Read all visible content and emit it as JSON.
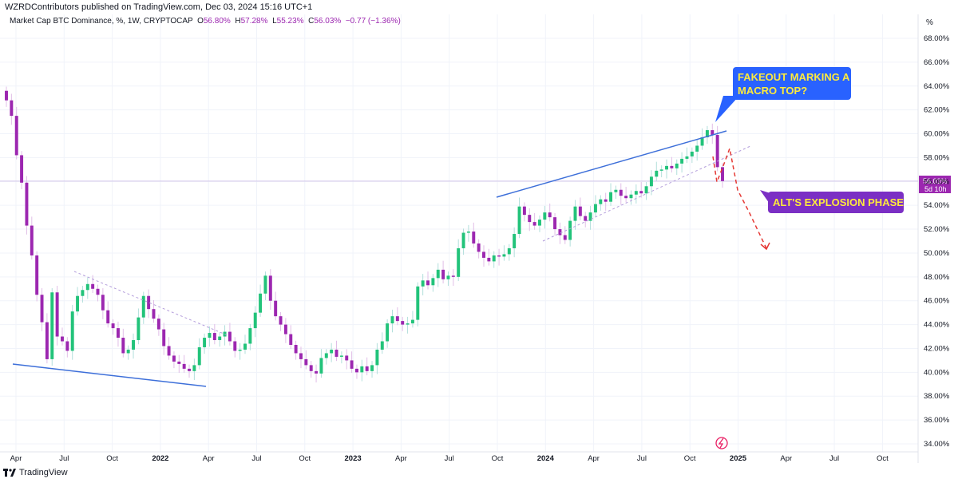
{
  "header": {
    "published": "WZRDContributors published on TradingView.com, Dec 03, 2024 15:16 UTC+1"
  },
  "legend": {
    "symbol": "Market Cap BTC Dominance, %, 1W, CRYPTOCAP",
    "o_label": "O",
    "o_value": "56.80%",
    "h_label": "H",
    "h_value": "57.28%",
    "l_label": "L",
    "l_value": "55.23%",
    "c_label": "C",
    "c_value": "56.03%",
    "change": "−0.77 (−1.36%)"
  },
  "footer": {
    "brand": "TradingView"
  },
  "colors": {
    "up": "#26a69a",
    "up_candle": "#22c37a",
    "down": "#9c27b0",
    "trendline": "#3d6fd9",
    "dotted": "#b39ddb",
    "projection": "#e53935",
    "callout_blue": "#2962ff",
    "callout_purple": "#7b2fc4",
    "callout_text": "#ffeb3b",
    "price_tag": "#9c27b0"
  },
  "chart_data": {
    "type": "candlestick",
    "title": "",
    "ylabel": "%",
    "ylim": [
      33.3,
      69.2
    ],
    "y_ticks": [
      "68.00%",
      "66.00%",
      "64.00%",
      "62.00%",
      "60.00%",
      "58.00%",
      "56.00%",
      "54.00%",
      "52.00%",
      "50.00%",
      "48.00%",
      "46.00%",
      "44.00%",
      "42.00%",
      "40.00%",
      "38.00%",
      "36.00%",
      "34.00%"
    ],
    "x_ticks": [
      "Apr",
      "Jul",
      "Oct",
      "2022",
      "Apr",
      "Jul",
      "Oct",
      "2023",
      "Apr",
      "Jul",
      "Oct",
      "2024",
      "Apr",
      "Jul",
      "Oct",
      "2025",
      "Apr",
      "Jul",
      "Oct"
    ],
    "x_ticks_bold": [
      "2022",
      "2023",
      "2024",
      "2025"
    ],
    "current_price": "56.03%",
    "countdown": "5d 10h",
    "series_close": [
      62.8,
      61.5,
      58.2,
      55.9,
      52.3,
      49.8,
      46.5,
      44.2,
      41.1,
      46.7,
      43.0,
      42.6,
      41.8,
      45.1,
      46.4,
      46.9,
      47.4,
      47.0,
      46.5,
      45.2,
      44.1,
      43.7,
      42.9,
      41.6,
      41.9,
      42.7,
      44.6,
      46.4,
      45.3,
      44.5,
      43.6,
      42.2,
      41.4,
      40.9,
      40.7,
      40.3,
      40.1,
      40.6,
      42.1,
      42.9,
      43.3,
      42.7,
      43.0,
      43.4,
      42.6,
      41.8,
      41.9,
      42.4,
      43.7,
      45.0,
      46.6,
      48.1,
      46.0,
      44.7,
      44.0,
      43.2,
      42.3,
      41.6,
      41.1,
      40.6,
      40.1,
      39.9,
      41.2,
      41.6,
      41.9,
      41.3,
      41.4,
      41.0,
      40.3,
      40.0,
      40.5,
      40.1,
      40.6,
      41.9,
      42.6,
      44.1,
      44.7,
      44.3,
      44.0,
      44.1,
      44.4,
      47.2,
      47.7,
      47.3,
      47.9,
      48.6,
      47.8,
      48.1,
      48.0,
      50.4,
      51.7,
      51.8,
      50.8,
      50.1,
      49.6,
      49.3,
      49.8,
      49.7,
      49.9,
      50.4,
      51.6,
      53.9,
      53.2,
      52.6,
      52.3,
      52.8,
      53.4,
      53.0,
      52.0,
      51.5,
      51.1,
      52.7,
      53.9,
      53.1,
      52.7,
      53.4,
      54.1,
      54.5,
      54.3,
      55.1,
      55.3,
      54.8,
      54.6,
      54.9,
      55.2,
      55.0,
      55.6,
      56.4,
      56.9,
      57.0,
      57.3,
      57.1,
      57.5,
      57.9,
      58.1,
      58.5,
      59.0,
      59.7,
      60.3,
      59.9,
      57.2,
      56.03
    ]
  }
}
